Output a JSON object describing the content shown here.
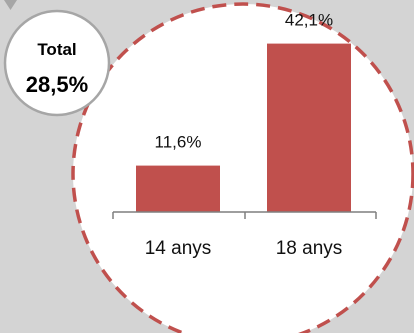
{
  "colors": {
    "background": "#d4d4d4",
    "bar": "#c0504d",
    "dashed_circle": "#c0504d",
    "circle_fill": "#ffffff",
    "badge_border": "#a6a6a6",
    "axis": "#7f7f7f"
  },
  "badge": {
    "title": "Total",
    "value": "28,5%"
  },
  "chart_data": {
    "type": "bar",
    "categories": [
      "14 anys",
      "18 anys"
    ],
    "values": [
      11.6,
      42.1
    ],
    "data_labels": [
      "11,6%",
      "42,1%"
    ],
    "ylim": [
      0,
      50
    ],
    "grid": false,
    "title": "",
    "xlabel": "",
    "ylabel": ""
  }
}
